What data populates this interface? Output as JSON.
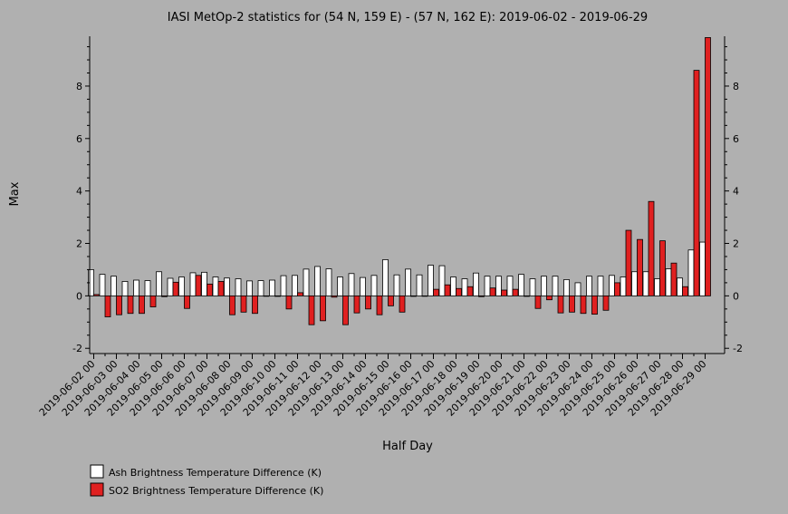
{
  "chart_data": {
    "type": "bar",
    "title": "IASI MetOp-2 statistics for (54 N, 159 E) - (57 N, 162 E): 2019-06-02 - 2019-06-29",
    "xlabel": "Half Day",
    "ylabel": "Max",
    "ylim": [
      -2.2,
      9.9
    ],
    "yticks": [
      -2,
      0,
      2,
      4,
      6,
      8
    ],
    "grid": false,
    "legend_position": "bottom-left",
    "tick_labels": [
      "2019-06-02 00",
      "2019-06-03 00",
      "2019-06-04 00",
      "2019-06-05 00",
      "2019-06-06 00",
      "2019-06-07 00",
      "2019-06-08 00",
      "2019-06-09 00",
      "2019-06-10 00",
      "2019-06-11 00",
      "2019-06-12 00",
      "2019-06-13 00",
      "2019-06-14 00",
      "2019-06-15 00",
      "2019-06-16 00",
      "2019-06-17 00",
      "2019-06-18 00",
      "2019-06-19 00",
      "2019-06-20 00",
      "2019-06-21 00",
      "2019-06-22 00",
      "2019-06-23 00",
      "2019-06-24 00",
      "2019-06-25 00",
      "2019-06-26 00",
      "2019-06-27 00",
      "2019-06-28 00",
      "2019-06-29 00"
    ],
    "series": [
      {
        "name": "Ash Brightness Temperature Difference (K)",
        "color": "#ffffff",
        "values": [
          1.0,
          0.82,
          0.75,
          0.55,
          0.6,
          0.58,
          0.92,
          0.67,
          0.72,
          0.88,
          0.9,
          0.72,
          0.68,
          0.65,
          0.57,
          0.58,
          0.6,
          0.77,
          0.78,
          1.02,
          1.12,
          1.03,
          0.72,
          0.85,
          0.7,
          0.78,
          1.38,
          0.8,
          1.02,
          0.8,
          1.17,
          1.15,
          0.72,
          0.65,
          0.87,
          0.75,
          0.75,
          0.75,
          0.82,
          0.65,
          0.75,
          0.75,
          0.62,
          0.5,
          0.75,
          0.75,
          0.78,
          0.72,
          0.92,
          0.92,
          0.65,
          1.03,
          0.68,
          1.75,
          2.05
        ]
      },
      {
        "name": "SO2 Brightness Temperature Difference (K)",
        "color": "#e02020",
        "values": [
          0.05,
          -0.8,
          -0.72,
          -0.67,
          -0.67,
          -0.42,
          -0.03,
          0.52,
          -0.48,
          0.78,
          0.45,
          0.55,
          -0.72,
          -0.62,
          -0.67,
          0.0,
          -0.02,
          -0.5,
          0.12,
          -1.1,
          -0.95,
          -0.05,
          -1.1,
          -0.65,
          -0.5,
          -0.72,
          -0.38,
          -0.62,
          -0.02,
          0.0,
          0.25,
          0.42,
          0.28,
          0.35,
          -0.03,
          0.3,
          0.22,
          0.25,
          -0.02,
          -0.48,
          -0.15,
          -0.65,
          -0.62,
          -0.67,
          -0.7,
          -0.55,
          0.5,
          2.5,
          2.15,
          3.6,
          2.1,
          1.25,
          0.35,
          8.6,
          9.85
        ]
      }
    ]
  }
}
